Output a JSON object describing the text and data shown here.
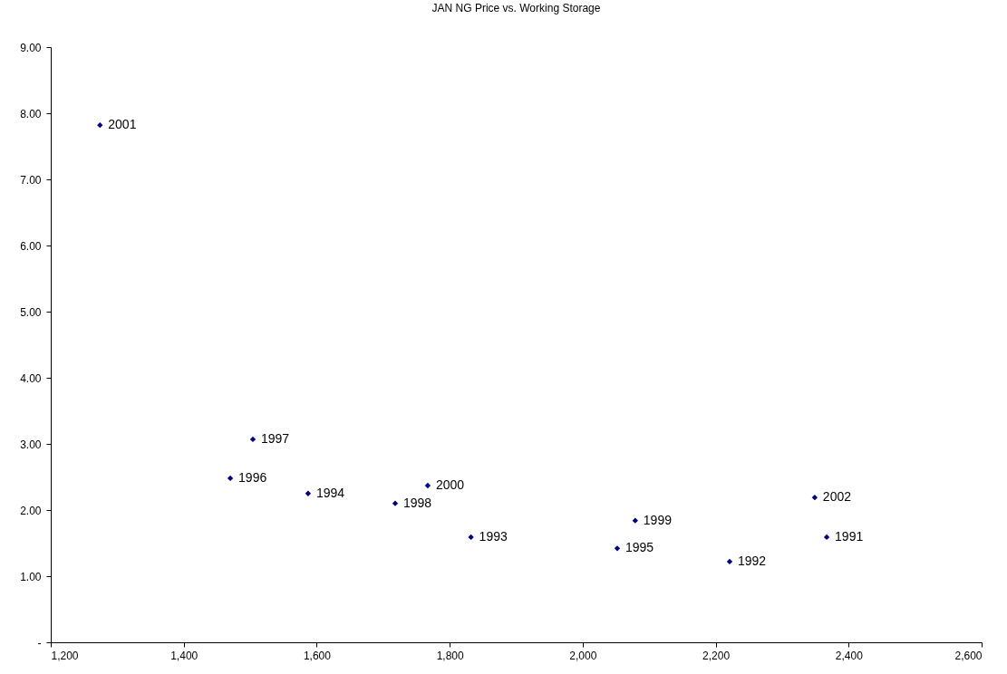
{
  "chart_data": {
    "type": "scatter",
    "title": "JAN NG Price vs. Working Storage",
    "x": [
      1274,
      1504,
      1470,
      1587,
      1718,
      1767,
      1832,
      2052,
      2079,
      2221,
      2349,
      2367
    ],
    "series": [
      {
        "color": "#000080",
        "values": [
          7.82,
          3.07,
          2.48,
          2.25,
          2.1,
          2.37,
          1.59,
          1.42,
          1.84,
          1.22,
          2.19,
          1.59
        ]
      }
    ],
    "xlim": [
      1200,
      2600
    ],
    "xticks": [
      {
        "value": 1200,
        "label": "1,200"
      },
      {
        "value": 1400,
        "label": "1,400"
      },
      {
        "value": 1600,
        "label": "1,600"
      },
      {
        "value": 1800,
        "label": "1,800"
      },
      {
        "value": 2000,
        "label": "2,000"
      },
      {
        "value": 2200,
        "label": "2,200"
      },
      {
        "value": 2400,
        "label": "2,400"
      },
      {
        "value": 2600,
        "label": "2,600"
      }
    ],
    "ylim": [
      0,
      9
    ],
    "yticks": [
      {
        "value": 0,
        "label": "-"
      },
      {
        "value": 1,
        "label": "1.00"
      },
      {
        "value": 2,
        "label": "2.00"
      },
      {
        "value": 3,
        "label": "3.00"
      },
      {
        "value": 4,
        "label": "4.00"
      },
      {
        "value": 5,
        "label": "5.00"
      },
      {
        "value": 6,
        "label": "6.00"
      },
      {
        "value": 7,
        "label": "7.00"
      },
      {
        "value": 8,
        "label": "8.00"
      },
      {
        "value": 9,
        "label": "9.00"
      }
    ],
    "marker": "diamond",
    "grid": false,
    "annotations": [
      {
        "text": "2001",
        "x": 1274,
        "y": 7.82
      },
      {
        "text": "1997",
        "x": 1504,
        "y": 3.07
      },
      {
        "text": "1996",
        "x": 1470,
        "y": 2.48
      },
      {
        "text": "1994",
        "x": 1587,
        "y": 2.25
      },
      {
        "text": "1998",
        "x": 1718,
        "y": 2.1
      },
      {
        "text": "2000",
        "x": 1767,
        "y": 2.37
      },
      {
        "text": "1993",
        "x": 1832,
        "y": 1.59
      },
      {
        "text": "1995",
        "x": 2052,
        "y": 1.42
      },
      {
        "text": "1999",
        "x": 2079,
        "y": 1.84
      },
      {
        "text": "1992",
        "x": 2221,
        "y": 1.22
      },
      {
        "text": "2002",
        "x": 2349,
        "y": 2.19
      },
      {
        "text": "1991",
        "x": 2367,
        "y": 1.59
      }
    ]
  }
}
